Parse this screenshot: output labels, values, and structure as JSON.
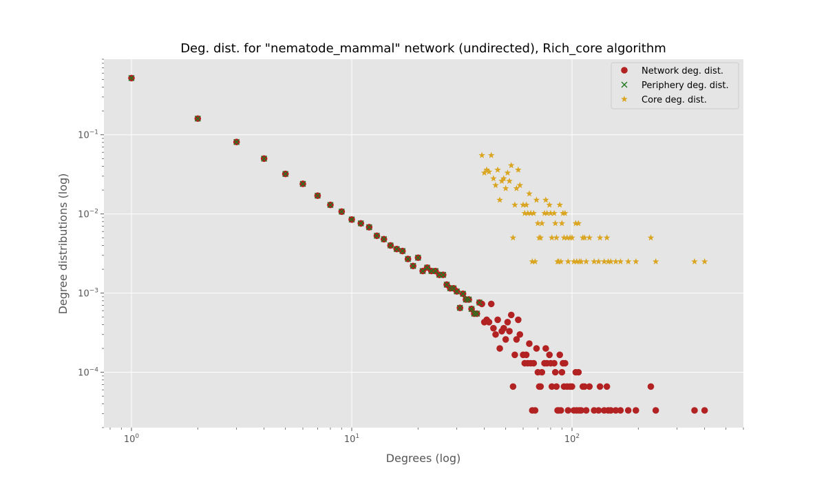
{
  "chart_data": {
    "type": "scatter",
    "title": "Deg. dist. for \"nematode_mammal\" network (undirected), Rich_core algorithm",
    "xlabel": "Degrees (log)",
    "ylabel": "Degree distributions (log)",
    "xscale": "log",
    "yscale": "log",
    "xlim": [
      0.75,
      600
    ],
    "ylim": [
      2e-05,
      0.9
    ],
    "grid": true,
    "legend_position": "top-right",
    "background_color": "#e5e5e5",
    "x_ticks": [
      {
        "value": 1,
        "base": "10",
        "exp": "0"
      },
      {
        "value": 10,
        "base": "10",
        "exp": "1"
      },
      {
        "value": 100,
        "base": "10",
        "exp": "2"
      }
    ],
    "y_ticks": [
      {
        "value": 0.1,
        "base": "10",
        "exp": "−1"
      },
      {
        "value": 0.01,
        "base": "10",
        "exp": "−2"
      },
      {
        "value": 0.001,
        "base": "10",
        "exp": "−3"
      },
      {
        "value": 0.0001,
        "base": "10",
        "exp": "−4"
      }
    ],
    "series": [
      {
        "name": "Network deg. dist.",
        "marker": "circle",
        "color": "#b22222",
        "points": [
          [
            1,
            0.52
          ],
          [
            2,
            0.16
          ],
          [
            3,
            0.081
          ],
          [
            4,
            0.05
          ],
          [
            5,
            0.032
          ],
          [
            6,
            0.024
          ],
          [
            7,
            0.017
          ],
          [
            8,
            0.013
          ],
          [
            9,
            0.0107
          ],
          [
            10,
            0.0085
          ],
          [
            11,
            0.0076
          ],
          [
            12,
            0.0068
          ],
          [
            13,
            0.0053
          ],
          [
            14,
            0.0048
          ],
          [
            15,
            0.004
          ],
          [
            16,
            0.0036
          ],
          [
            17,
            0.0034
          ],
          [
            18,
            0.0027
          ],
          [
            19,
            0.0022
          ],
          [
            20,
            0.0028
          ],
          [
            21,
            0.0019
          ],
          [
            22,
            0.0021
          ],
          [
            23,
            0.0019
          ],
          [
            24,
            0.0019
          ],
          [
            25,
            0.0017
          ],
          [
            26,
            0.0017
          ],
          [
            27,
            0.00128
          ],
          [
            28,
            0.00115
          ],
          [
            29,
            0.00115
          ],
          [
            30,
            0.00105
          ],
          [
            31,
            0.00065
          ],
          [
            32,
            0.00098
          ],
          [
            33,
            0.00083
          ],
          [
            34,
            0.00083
          ],
          [
            35,
            0.00063
          ],
          [
            36,
            0.00055
          ],
          [
            37,
            0.00055
          ],
          [
            38,
            0.00076
          ],
          [
            39,
            0.00073
          ],
          [
            40,
            0.00043
          ],
          [
            41,
            0.00046
          ],
          [
            42,
            0.00043
          ],
          [
            43,
            0.00073
          ],
          [
            44,
            0.00036
          ],
          [
            45,
            0.0003
          ],
          [
            46,
            0.00046
          ],
          [
            47,
            0.0002
          ],
          [
            48,
            0.00033
          ],
          [
            49,
            0.00036
          ],
          [
            50,
            0.00026
          ],
          [
            51,
            0.00043
          ],
          [
            52,
            0.00033
          ],
          [
            53,
            0.00053
          ],
          [
            54,
            6.6e-05
          ],
          [
            55,
            0.000166
          ],
          [
            56,
            0.00026
          ],
          [
            57,
            0.00046
          ],
          [
            58,
            0.0003
          ],
          [
            60,
            0.000166
          ],
          [
            61,
            0.00013
          ],
          [
            62,
            0.000166
          ],
          [
            63,
            0.00013
          ],
          [
            64,
            0.00023
          ],
          [
            65,
            0.00013
          ],
          [
            66,
            3.3e-05
          ],
          [
            67,
            0.00013
          ],
          [
            68,
            3.3e-05
          ],
          [
            69,
            0.0002
          ],
          [
            70,
            0.0001
          ],
          [
            71,
            6.6e-05
          ],
          [
            72,
            6.6e-05
          ],
          [
            73,
            0.0001
          ],
          [
            75,
            0.00013
          ],
          [
            76,
            0.0002
          ],
          [
            77,
            0.00013
          ],
          [
            79,
            0.000166
          ],
          [
            80,
            0.00013
          ],
          [
            81,
            6.6e-05
          ],
          [
            83,
            0.00013
          ],
          [
            84,
            0.0001
          ],
          [
            85,
            6.6e-05
          ],
          [
            86,
            3.3e-05
          ],
          [
            87,
            3.3e-05
          ],
          [
            88,
            0.000166
          ],
          [
            89,
            3.3e-05
          ],
          [
            90,
            0.0001
          ],
          [
            91,
            0.00013
          ],
          [
            92,
            6.6e-05
          ],
          [
            93,
            0.00013
          ],
          [
            95,
            6.6e-05
          ],
          [
            96,
            3.3e-05
          ],
          [
            98,
            6.6e-05
          ],
          [
            100,
            6.6e-05
          ],
          [
            102,
            3.3e-05
          ],
          [
            104,
            0.0001
          ],
          [
            105,
            3.3e-05
          ],
          [
            107,
            0.0001
          ],
          [
            108,
            3.3e-05
          ],
          [
            110,
            3.3e-05
          ],
          [
            112,
            6.6e-05
          ],
          [
            114,
            6.6e-05
          ],
          [
            116,
            3.3e-05
          ],
          [
            120,
            6.6e-05
          ],
          [
            126,
            3.3e-05
          ],
          [
            132,
            3.3e-05
          ],
          [
            134,
            6.6e-05
          ],
          [
            140,
            3.3e-05
          ],
          [
            144,
            6.6e-05
          ],
          [
            146,
            3.3e-05
          ],
          [
            150,
            3.3e-05
          ],
          [
            158,
            3.3e-05
          ],
          [
            166,
            3.3e-05
          ],
          [
            180,
            3.3e-05
          ],
          [
            195,
            3.3e-05
          ],
          [
            228,
            6.6e-05
          ],
          [
            240,
            3.3e-05
          ],
          [
            360,
            3.3e-05
          ],
          [
            400,
            3.3e-05
          ]
        ]
      },
      {
        "name": "Periphery deg. dist.",
        "marker": "x",
        "color": "#1f7a1f",
        "points": [
          [
            1,
            0.52
          ],
          [
            2,
            0.16
          ],
          [
            3,
            0.081
          ],
          [
            4,
            0.05
          ],
          [
            5,
            0.032
          ],
          [
            6,
            0.024
          ],
          [
            7,
            0.017
          ],
          [
            8,
            0.013
          ],
          [
            9,
            0.0107
          ],
          [
            10,
            0.0085
          ],
          [
            11,
            0.0076
          ],
          [
            12,
            0.0068
          ],
          [
            13,
            0.0053
          ],
          [
            14,
            0.0048
          ],
          [
            15,
            0.004
          ],
          [
            16,
            0.0036
          ],
          [
            17,
            0.0034
          ],
          [
            18,
            0.0027
          ],
          [
            19,
            0.0022
          ],
          [
            20,
            0.0028
          ],
          [
            21,
            0.0019
          ],
          [
            22,
            0.0021
          ],
          [
            23,
            0.0019
          ],
          [
            24,
            0.0019
          ],
          [
            25,
            0.0017
          ],
          [
            26,
            0.0017
          ],
          [
            27,
            0.00128
          ],
          [
            28,
            0.00115
          ],
          [
            29,
            0.00115
          ],
          [
            30,
            0.00105
          ],
          [
            31,
            0.00065
          ],
          [
            32,
            0.00098
          ],
          [
            33,
            0.00083
          ],
          [
            34,
            0.00083
          ],
          [
            35,
            0.00063
          ],
          [
            36,
            0.00055
          ],
          [
            37,
            0.00055
          ],
          [
            38,
            0.00076
          ]
        ]
      },
      {
        "name": "Core deg. dist.",
        "marker": "star",
        "color": "#daa520",
        "points": [
          [
            39,
            0.055
          ],
          [
            40,
            0.033
          ],
          [
            41,
            0.036
          ],
          [
            42,
            0.034
          ],
          [
            43,
            0.055
          ],
          [
            44,
            0.028
          ],
          [
            45,
            0.023
          ],
          [
            46,
            0.036
          ],
          [
            47,
            0.015
          ],
          [
            48,
            0.026
          ],
          [
            49,
            0.028
          ],
          [
            50,
            0.021
          ],
          [
            51,
            0.033
          ],
          [
            52,
            0.026
          ],
          [
            53,
            0.041
          ],
          [
            54,
            0.005
          ],
          [
            55,
            0.013
          ],
          [
            56,
            0.021
          ],
          [
            57,
            0.036
          ],
          [
            58,
            0.023
          ],
          [
            60,
            0.013
          ],
          [
            61,
            0.0102
          ],
          [
            62,
            0.013
          ],
          [
            63,
            0.0102
          ],
          [
            64,
            0.018
          ],
          [
            65,
            0.0102
          ],
          [
            66,
            0.0025
          ],
          [
            67,
            0.0102
          ],
          [
            68,
            0.0025
          ],
          [
            69,
            0.015
          ],
          [
            70,
            0.0076
          ],
          [
            71,
            0.005
          ],
          [
            72,
            0.005
          ],
          [
            73,
            0.0076
          ],
          [
            75,
            0.0102
          ],
          [
            76,
            0.015
          ],
          [
            77,
            0.0102
          ],
          [
            79,
            0.013
          ],
          [
            80,
            0.0102
          ],
          [
            81,
            0.005
          ],
          [
            83,
            0.0102
          ],
          [
            84,
            0.0076
          ],
          [
            85,
            0.005
          ],
          [
            86,
            0.0025
          ],
          [
            87,
            0.0025
          ],
          [
            88,
            0.013
          ],
          [
            89,
            0.0025
          ],
          [
            90,
            0.0076
          ],
          [
            91,
            0.0102
          ],
          [
            92,
            0.005
          ],
          [
            93,
            0.0102
          ],
          [
            95,
            0.005
          ],
          [
            96,
            0.0025
          ],
          [
            98,
            0.005
          ],
          [
            100,
            0.005
          ],
          [
            102,
            0.0025
          ],
          [
            104,
            0.0076
          ],
          [
            105,
            0.0025
          ],
          [
            107,
            0.0076
          ],
          [
            108,
            0.0025
          ],
          [
            110,
            0.0025
          ],
          [
            112,
            0.005
          ],
          [
            114,
            0.005
          ],
          [
            116,
            0.0025
          ],
          [
            120,
            0.005
          ],
          [
            126,
            0.0025
          ],
          [
            132,
            0.0025
          ],
          [
            134,
            0.005
          ],
          [
            140,
            0.0025
          ],
          [
            144,
            0.005
          ],
          [
            146,
            0.0025
          ],
          [
            150,
            0.0025
          ],
          [
            158,
            0.0025
          ],
          [
            166,
            0.0025
          ],
          [
            180,
            0.0025
          ],
          [
            195,
            0.0025
          ],
          [
            228,
            0.005
          ],
          [
            240,
            0.0025
          ],
          [
            360,
            0.0025
          ],
          [
            400,
            0.0025
          ]
        ]
      }
    ]
  }
}
